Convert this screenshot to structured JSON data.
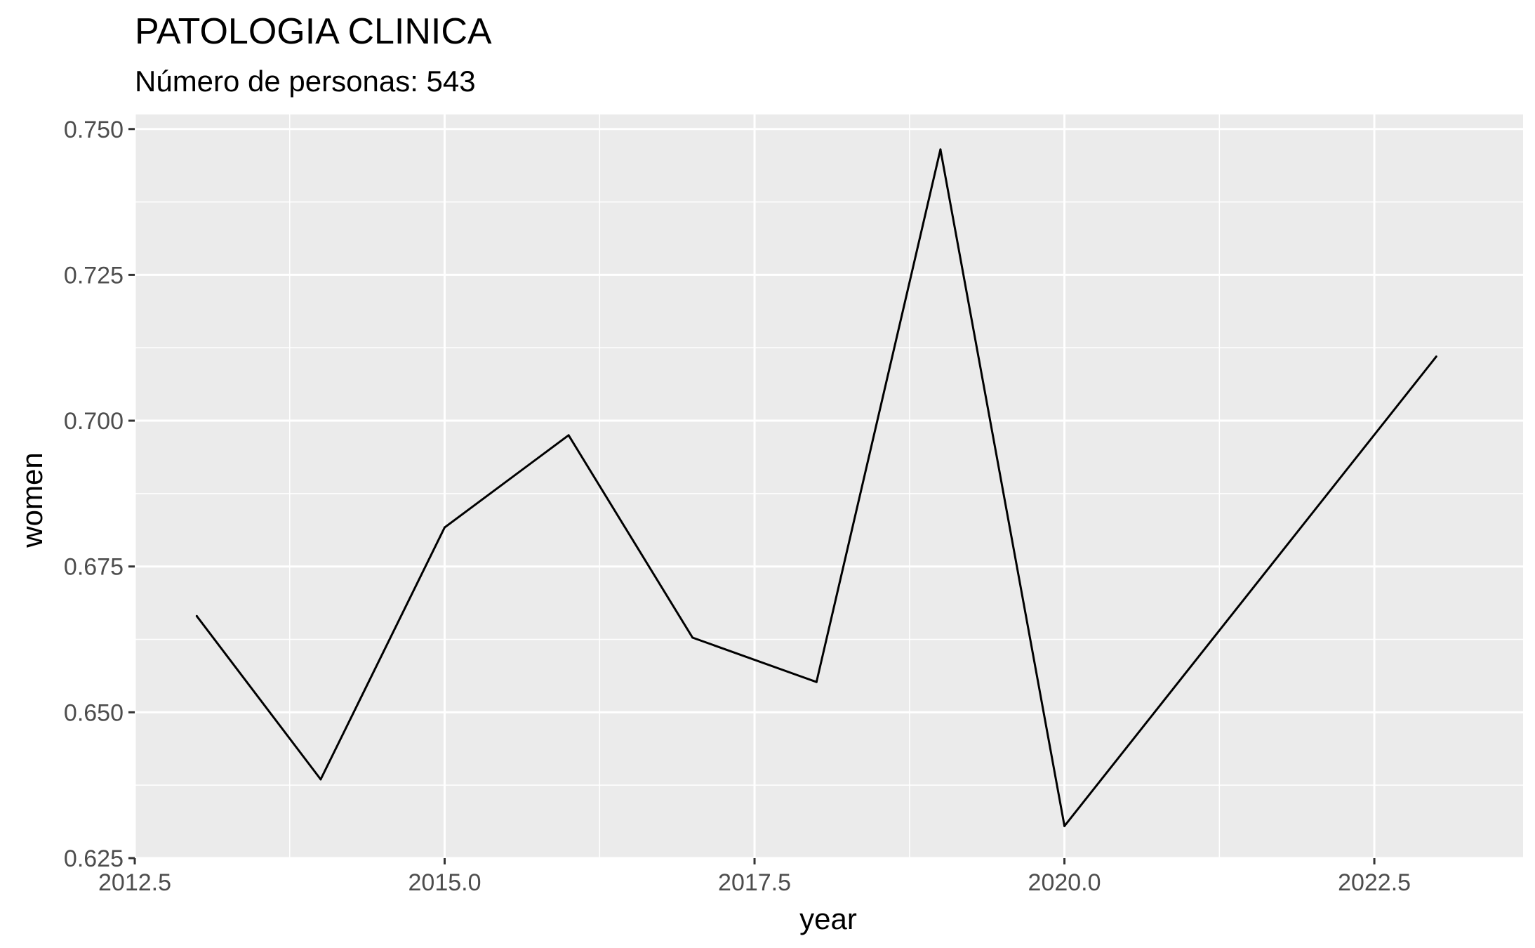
{
  "chart_data": {
    "type": "line",
    "title": "PATOLOGIA CLINICA",
    "subtitle": "Número de personas: 543",
    "xlabel": "year",
    "ylabel": "women",
    "xlim": [
      2012.5,
      2023.7
    ],
    "ylim": [
      0.625,
      0.7525
    ],
    "x_ticks": [
      2012.5,
      2015.0,
      2017.5,
      2020.0,
      2022.5
    ],
    "x_tick_labels": [
      "2012.5",
      "2015.0",
      "2017.5",
      "2020.0",
      "2022.5"
    ],
    "y_ticks": [
      0.625,
      0.65,
      0.675,
      0.7,
      0.725,
      0.75
    ],
    "y_tick_labels": [
      "0.625",
      "0.650",
      "0.675",
      "0.700",
      "0.725",
      "0.750"
    ],
    "grid": true,
    "series": [
      {
        "x": [
          2013,
          2014,
          2015,
          2016,
          2017,
          2018,
          2019,
          2020,
          2023
        ],
        "values": [
          0.6665,
          0.6385,
          0.6817,
          0.6975,
          0.6628,
          0.6552,
          0.7465,
          0.6305,
          0.711
        ]
      }
    ],
    "colors": {
      "panel": "#ebebeb",
      "grid": "#ffffff",
      "line": "#000000",
      "tick_text": "#4d4d4d"
    }
  }
}
